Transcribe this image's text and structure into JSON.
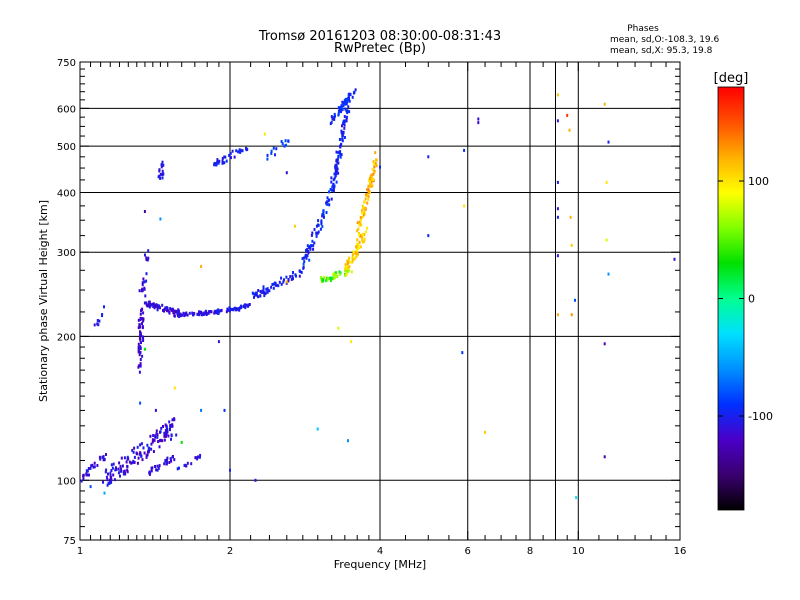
{
  "chart_data": {
    "type": "scatter",
    "title": "Tromsø 20161203 08:30:00-08:31:43",
    "subtitle": "RwPretec (Bp)",
    "stats": {
      "heading": "Phases",
      "line_o": "mean, sd,O:-108.3, 19.6",
      "line_x": "mean, sd,X:  95.3, 19.8"
    },
    "xlabel": "Frequency [MHz]",
    "ylabel": "Stationary phase Virtual Height [km]",
    "x_scale": "log",
    "y_scale": "log",
    "xlim": [
      1,
      16
    ],
    "ylim": [
      75,
      750
    ],
    "grid": true,
    "x_ticks": [
      1,
      2,
      4,
      6,
      8,
      10,
      16
    ],
    "x_tick_labels": [
      "1",
      "2",
      "4",
      "6",
      "8",
      "10",
      "16"
    ],
    "x_minor_ticks": [
      1.05,
      1.1,
      1.15,
      1.2,
      1.25,
      1.3,
      1.35,
      1.4,
      1.45,
      1.5,
      1.6,
      1.7,
      1.8,
      1.9,
      2.2,
      2.4,
      2.6,
      2.8,
      3.0,
      3.2,
      3.4,
      3.6,
      3.8,
      4.5,
      5,
      5.5,
      6.5,
      7,
      7.5,
      8.5,
      9,
      9.5,
      11,
      12,
      13,
      14,
      15
    ],
    "x_gridlines": [
      2,
      4,
      6,
      8,
      9,
      10
    ],
    "y_ticks": [
      75,
      100,
      200,
      300,
      400,
      500,
      600,
      750
    ],
    "y_tick_labels": [
      "75",
      "100",
      "200",
      "300",
      "400",
      "500",
      "600",
      "750"
    ],
    "y_minor_ticks": [
      80,
      85,
      90,
      95,
      110,
      120,
      130,
      140,
      150,
      160,
      170,
      180,
      190,
      225,
      250,
      275,
      325,
      350,
      375,
      425,
      450,
      475,
      525,
      550,
      575,
      625,
      650,
      675,
      700,
      725
    ],
    "y_gridlines": [
      100,
      200,
      300,
      400,
      500,
      600
    ],
    "colorbar": {
      "label": "[deg]",
      "min": -180,
      "max": 180,
      "ticks": [
        100,
        0,
        -100
      ],
      "tick_labels": [
        "100",
        "0",
        "-100"
      ],
      "colors": [
        "#000000",
        "#3a0070",
        "#4a00c8",
        "#0030ff",
        "#0090ff",
        "#00e0ff",
        "#00ff90",
        "#00e000",
        "#80ff00",
        "#ffff00",
        "#ffb000",
        "#ff5000",
        "#ff0000"
      ]
    },
    "series": [
      {
        "segments": [
          {
            "f": [
              1.0,
              1.12
            ],
            "h": [
              100,
              112
            ],
            "n": 30,
            "ph": [
              -120,
              -95
            ],
            "spread": 0.03
          },
          {
            "f": [
              1.12,
              1.55
            ],
            "h": [
              100,
              130
            ],
            "n": 140,
            "ph": [
              -130,
              -95
            ],
            "spread": 0.09
          },
          {
            "f": [
              1.35,
              1.55
            ],
            "h": [
              103,
              112
            ],
            "n": 30,
            "ph": [
              -125,
              -100
            ],
            "spread": 0.03
          },
          {
            "f": [
              1.55,
              1.75
            ],
            "h": [
              104,
              113
            ],
            "n": 14,
            "ph": [
              -120,
              -95
            ],
            "spread": 0.02
          },
          {
            "f": [
              1.32,
              1.33
            ],
            "h": [
              170,
              240
            ],
            "n": 50,
            "ph": [
              -130,
              -105
            ],
            "spread": 0.15
          },
          {
            "f": [
              1.34,
              1.36
            ],
            "h": [
              235,
              300
            ],
            "n": 20,
            "ph": [
              -125,
              -100
            ],
            "spread": 0.03
          },
          {
            "f": [
              1.36,
              1.6
            ],
            "h": [
              235,
              222
            ],
            "n": 70,
            "ph": [
              -125,
              -100
            ],
            "spread": 0.03
          },
          {
            "f": [
              1.6,
              1.9
            ],
            "h": [
              222,
              225
            ],
            "n": 55,
            "ph": [
              -120,
              -100
            ],
            "spread": 0.015
          },
          {
            "f": [
              1.9,
              2.2
            ],
            "h": [
              225,
              232
            ],
            "n": 40,
            "ph": [
              -115,
              -95
            ],
            "spread": 0.02
          },
          {
            "f": [
              2.2,
              2.8
            ],
            "h": [
              240,
              275
            ],
            "n": 60,
            "ph": [
              -110,
              -90
            ],
            "spread": 0.04
          },
          {
            "f": [
              2.8,
              3.2
            ],
            "h": [
              280,
              400
            ],
            "n": 70,
            "ph": [
              -110,
              -80
            ],
            "spread": 0.05
          },
          {
            "f": [
              3.2,
              3.45
            ],
            "h": [
              400,
              610
            ],
            "n": 80,
            "ph": [
              -110,
              -85
            ],
            "spread": 0.05
          },
          {
            "f": [
              3.18,
              3.55
            ],
            "h": [
              560,
              650
            ],
            "n": 55,
            "ph": [
              -105,
              -85
            ],
            "spread": 0.03
          },
          {
            "f": [
              1.08,
              1.12
            ],
            "h": [
              212,
              230
            ],
            "n": 8,
            "ph": [
              -110,
              -95
            ],
            "spread": 0.02
          },
          {
            "f": [
              1.45,
              1.47
            ],
            "h": [
              430,
              465
            ],
            "n": 14,
            "ph": [
              -115,
              -100
            ],
            "spread": 0.03
          },
          {
            "f": [
              1.85,
              2.15
            ],
            "h": [
              455,
              495
            ],
            "n": 35,
            "ph": [
              -110,
              -90
            ],
            "spread": 0.03
          },
          {
            "f": [
              2.35,
              2.65
            ],
            "h": [
              470,
              520
            ],
            "n": 14,
            "ph": [
              -100,
              -80
            ],
            "spread": 0.04
          }
        ]
      },
      {
        "segments": [
          {
            "f": [
              3.05,
              3.5
            ],
            "h": [
              262,
              275
            ],
            "n": 40,
            "ph": [
              10,
              80
            ],
            "spread": 0.03
          },
          {
            "f": [
              3.4,
              3.75
            ],
            "h": [
              270,
              330
            ],
            "n": 60,
            "ph": [
              90,
              125
            ],
            "spread": 0.05
          },
          {
            "f": [
              3.6,
              3.95
            ],
            "h": [
              320,
              480
            ],
            "n": 80,
            "ph": [
              95,
              135
            ],
            "spread": 0.06
          }
        ]
      },
      {
        "points": [
          [
            5.0,
            475,
            -100
          ],
          [
            5.9,
            490,
            -90
          ],
          [
            5.9,
            375,
            100
          ],
          [
            6.3,
            570,
            -110
          ],
          [
            6.3,
            560,
            -115
          ],
          [
            5.0,
            325,
            -95
          ],
          [
            5.85,
            185,
            -90
          ],
          [
            6.5,
            126,
            110
          ],
          [
            3.45,
            121,
            -60
          ],
          [
            3.0,
            128,
            -40
          ],
          [
            9.1,
            640,
            110
          ],
          [
            9.1,
            565,
            -105
          ],
          [
            9.1,
            420,
            -105
          ],
          [
            9.1,
            370,
            -110
          ],
          [
            9.1,
            355,
            -100
          ],
          [
            9.1,
            295,
            -105
          ],
          [
            9.1,
            222,
            120
          ],
          [
            9.5,
            580,
            160
          ],
          [
            9.6,
            540,
            120
          ],
          [
            9.65,
            355,
            120
          ],
          [
            9.7,
            310,
            110
          ],
          [
            9.7,
            222,
            130
          ],
          [
            9.85,
            238,
            -80
          ],
          [
            9.9,
            92,
            -30
          ],
          [
            11.3,
            612,
            120
          ],
          [
            11.4,
            420,
            100
          ],
          [
            11.4,
            318,
            80
          ],
          [
            11.5,
            510,
            -100
          ],
          [
            11.5,
            270,
            -60
          ],
          [
            11.3,
            193,
            -120
          ],
          [
            11.3,
            112,
            -130
          ],
          [
            15.6,
            290,
            -110
          ],
          [
            4.0,
            452,
            -95
          ],
          [
            2.7,
            340,
            110
          ],
          [
            2.6,
            260,
            120
          ],
          [
            2.35,
            530,
            100
          ],
          [
            1.9,
            195,
            -110
          ],
          [
            1.35,
            188,
            30
          ],
          [
            1.32,
            145,
            -80
          ],
          [
            1.55,
            156,
            100
          ],
          [
            1.45,
            352,
            -60
          ],
          [
            1.42,
            140,
            -110
          ],
          [
            1.35,
            365,
            -130
          ],
          [
            1.75,
            280,
            120
          ],
          [
            1.95,
            140,
            -90
          ],
          [
            3.3,
            208,
            80
          ],
          [
            3.5,
            195,
            100
          ],
          [
            2.6,
            440,
            -110
          ],
          [
            2.0,
            105,
            -100
          ],
          [
            2.25,
            100,
            -110
          ],
          [
            1.05,
            97,
            -80
          ],
          [
            1.12,
            94,
            -50
          ],
          [
            1.75,
            140,
            -70
          ],
          [
            1.6,
            120,
            30
          ]
        ]
      }
    ]
  }
}
